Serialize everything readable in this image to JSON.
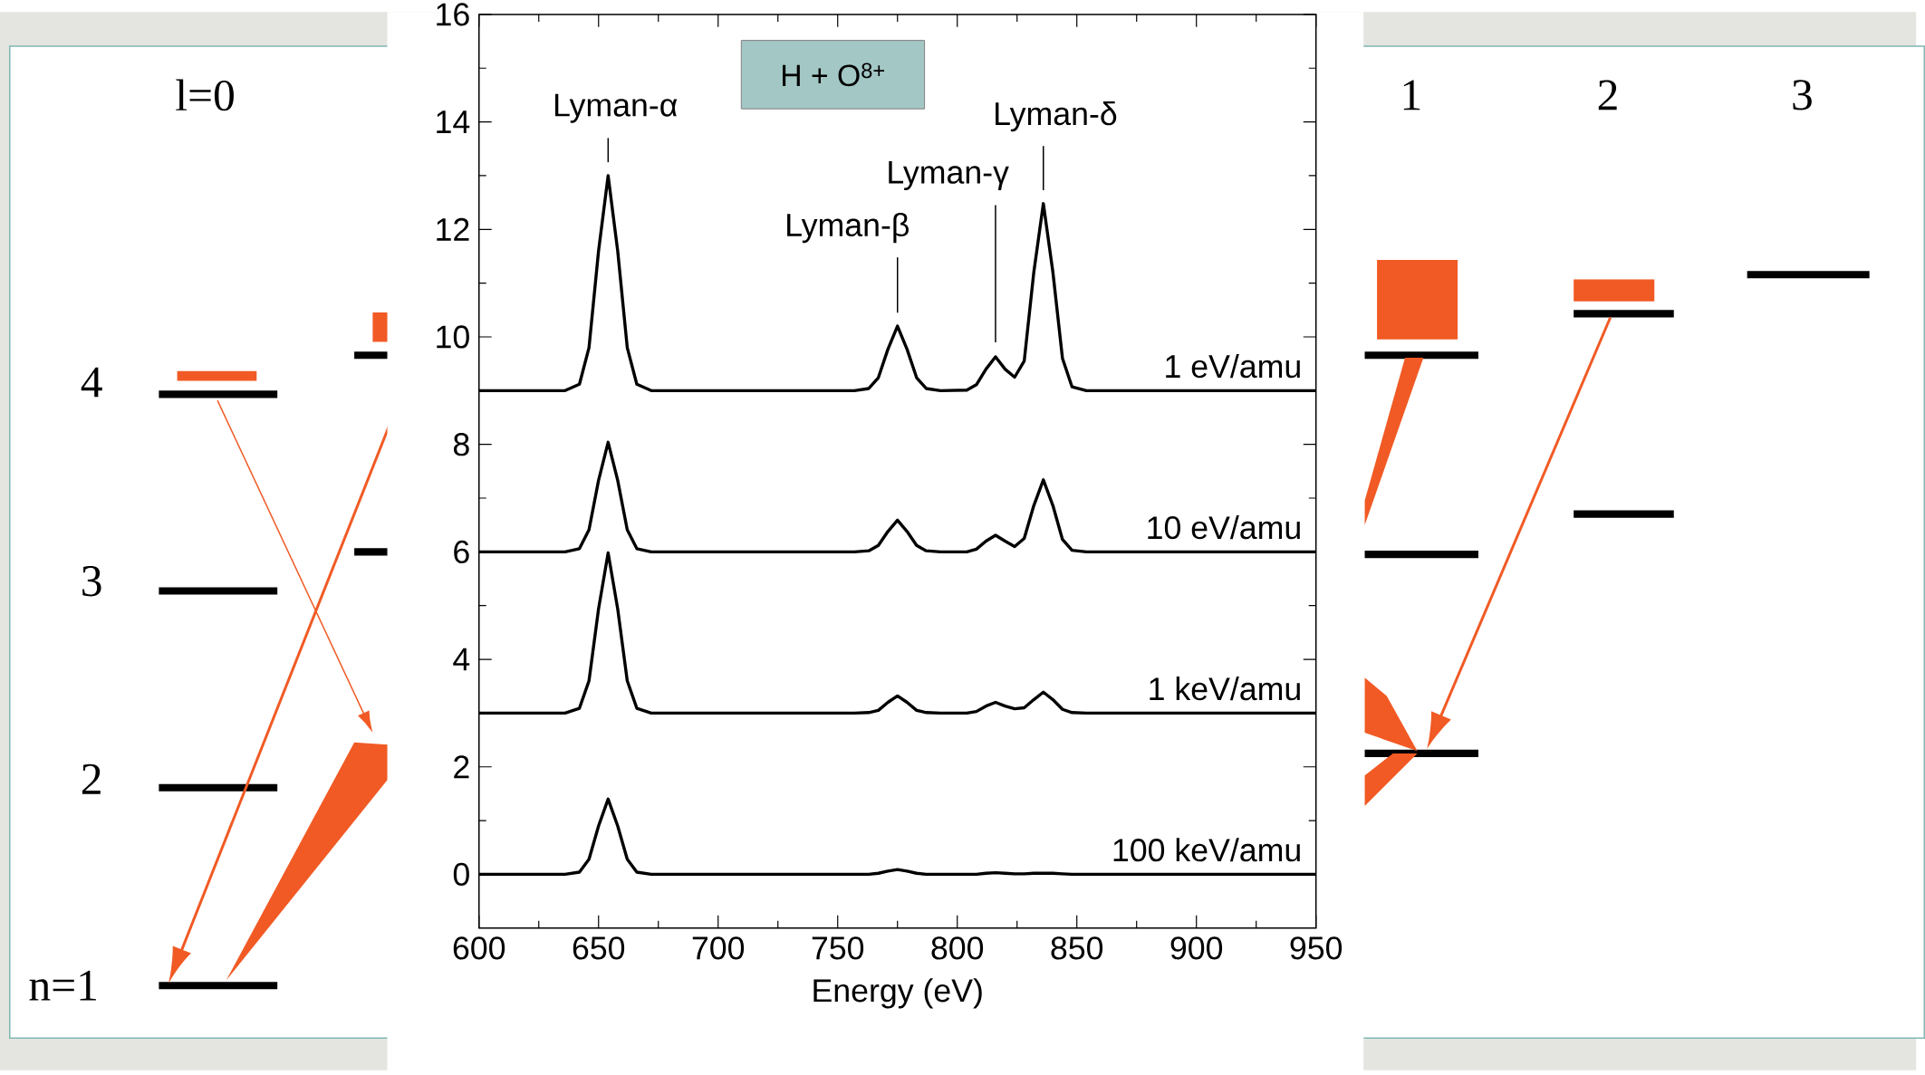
{
  "chart_data": {
    "type": "line",
    "xlabel": "Energy (eV)",
    "legend": "right",
    "xlim": [
      600,
      950
    ],
    "ylim": [
      -1,
      16
    ],
    "xticks": [
      600,
      650,
      700,
      750,
      800,
      850,
      900,
      950
    ],
    "yticks": [
      0,
      2,
      4,
      6,
      8,
      10,
      12,
      14,
      16
    ],
    "x": [
      600,
      636,
      642,
      646,
      650,
      654,
      658,
      662,
      666,
      672,
      700,
      757,
      763,
      767,
      771,
      775,
      779,
      783,
      787,
      793,
      804,
      808,
      812,
      816,
      820,
      824,
      828,
      832,
      836,
      840,
      844,
      848,
      854,
      880,
      950
    ],
    "series": [
      {
        "name": "1 eV/amu",
        "color": "#000000",
        "values": [
          9.0,
          9.0,
          9.12,
          9.8,
          11.6,
          13.0,
          11.6,
          9.8,
          9.12,
          9.0,
          9.0,
          9.0,
          9.04,
          9.24,
          9.77,
          10.2,
          9.77,
          9.24,
          9.04,
          9.0,
          9.01,
          9.11,
          9.4,
          9.63,
          9.4,
          9.25,
          9.55,
          11.2,
          12.48,
          11.2,
          9.6,
          9.07,
          9.0,
          9.0,
          9.0
        ]
      },
      {
        "name": "10 eV/amu",
        "color": "#000000",
        "values": [
          6.0,
          6.0,
          6.06,
          6.41,
          7.33,
          8.04,
          7.33,
          6.41,
          6.06,
          6.0,
          6.0,
          6.0,
          6.02,
          6.12,
          6.38,
          6.59,
          6.38,
          6.12,
          6.02,
          6.0,
          6.0,
          6.05,
          6.2,
          6.31,
          6.2,
          6.1,
          6.25,
          6.86,
          7.34,
          6.86,
          6.23,
          6.03,
          6.0,
          6.0,
          6.0
        ]
      },
      {
        "name": "1 keV/amu",
        "color": "#000000",
        "values": [
          3.0,
          3.0,
          3.09,
          3.6,
          4.94,
          5.98,
          4.94,
          3.6,
          3.09,
          3.0,
          3.0,
          3.0,
          3.01,
          3.05,
          3.2,
          3.32,
          3.2,
          3.05,
          3.01,
          3.0,
          3.0,
          3.03,
          3.13,
          3.2,
          3.13,
          3.08,
          3.1,
          3.25,
          3.39,
          3.25,
          3.07,
          3.01,
          3.0,
          3.0,
          3.0
        ]
      },
      {
        "name": "100 keV/amu",
        "color": "#000000",
        "values": [
          0,
          0,
          0.04,
          0.28,
          0.9,
          1.4,
          0.9,
          0.28,
          0.04,
          0,
          0,
          0,
          0,
          0.02,
          0.06,
          0.09,
          0.06,
          0.02,
          0,
          0,
          0,
          0,
          0.02,
          0.03,
          0.02,
          0.01,
          0.01,
          0.02,
          0.02,
          0.02,
          0.01,
          0,
          0,
          0,
          0
        ]
      }
    ],
    "annotations": [
      "l=0",
      "1",
      "2",
      "3",
      "4",
      "3",
      "2",
      "n=1",
      "H  + O$^{8+}$",
      {
        "text": "Lyman-α",
        "x": 654,
        "y": 13.0
      },
      {
        "text": "Lyman-β",
        "x": 775,
        "y": 10.2
      },
      "Lyman-γ",
      {
        "text": "Lyman-δ",
        "x": 836,
        "y": 12.48
      }
    ]
  }
}
